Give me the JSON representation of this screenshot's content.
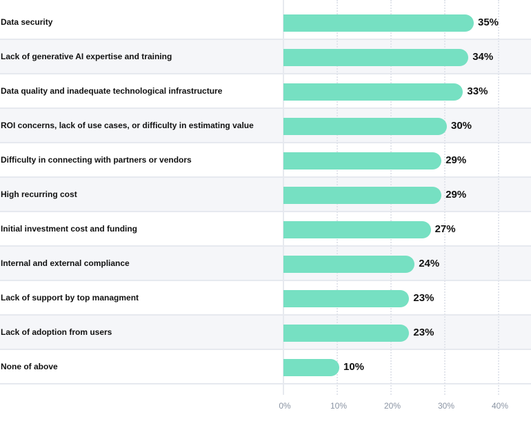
{
  "chart_data": {
    "type": "bar",
    "orientation": "horizontal",
    "categories": [
      "Data security",
      "Lack of generative AI expertise and training",
      "Data quality and inadequate technological infrastructure",
      "ROI concerns, lack of use cases, or difficulty in estimating value",
      "Difficulty in connecting with partners or vendors",
      "High recurring cost",
      "Initial investment cost and funding",
      "Internal and external compliance",
      "Lack of support by top managment",
      "Lack of adoption from users",
      "None of above"
    ],
    "values": [
      35,
      34,
      33,
      30,
      29,
      29,
      27,
      24,
      23,
      23,
      10
    ],
    "value_labels": [
      "35%",
      "34%",
      "33%",
      "30%",
      "29%",
      "29%",
      "27%",
      "24%",
      "23%",
      "23%",
      "10%"
    ],
    "xlim": [
      0,
      45
    ],
    "x_ticks": [
      0,
      10,
      20,
      30,
      40
    ],
    "x_tick_labels": [
      "0%",
      "10%",
      "20%",
      "30%",
      "40%"
    ],
    "grid": true,
    "bar_color": "#76e0c2",
    "alt_row_color": "#f5f6f9"
  }
}
